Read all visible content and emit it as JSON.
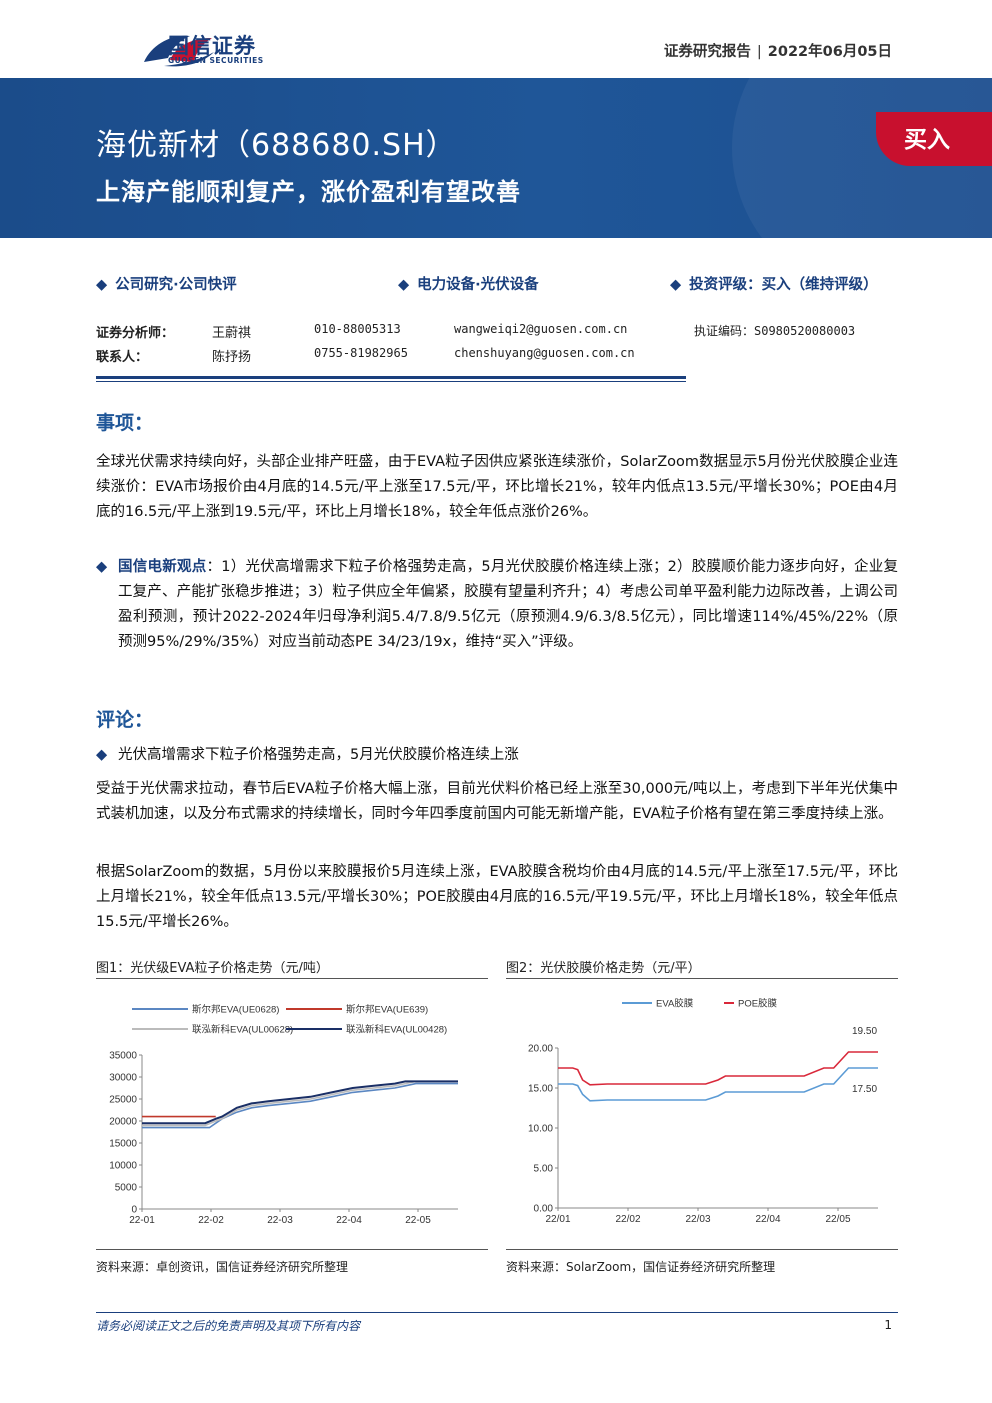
{
  "header": {
    "logo_cn": "国信证券",
    "logo_en": "GUOSEN SECURITIES",
    "report_type": "证券研究报告",
    "date": "2022年06月05日"
  },
  "banner": {
    "title": "海优新材（688680.SH）",
    "subtitle": "上海产能顺利复产，涨价盈利有望改善",
    "rating": "买入"
  },
  "categories": {
    "research": "公司研究·公司快评",
    "industry": "电力设备·光伏设备",
    "rating": "投资评级：买入（维持评级）"
  },
  "analysts": [
    {
      "role": "证券分析师：",
      "name": "王蔚祺",
      "phone": "010-88005313",
      "email": "wangweiqi2@guosen.com.cn",
      "cert": "执证编码：S0980520080003"
    },
    {
      "role": "联系人：",
      "name": "陈抒扬",
      "phone": "0755-81982965",
      "email": "chenshuyang@guosen.com.cn",
      "cert": ""
    }
  ],
  "events": {
    "heading": "事项：",
    "text": "全球光伏需求持续向好，头部企业排产旺盛，由于EVA粒子因供应紧张连续涨价，SolarZoom数据显示5月份光伏胶膜企业连续涨价：EVA市场报价由4月底的14.5元/平上涨至17.5元/平，环比增长21%，较年内低点13.5元/平增长30%；POE由4月底的16.5元/平上涨到19.5元/平，环比上月增长18%，较全年低点涨价26%。"
  },
  "viewpoint": {
    "label": "国信电新观点",
    "text": "：1）光伏高增需求下粒子价格强势走高，5月光伏胶膜价格连续上涨；2）胶膜顺价能力逐步向好，企业复工复产、产能扩张稳步推进；3）粒子供应全年偏紧，胶膜有望量利齐升；4）考虑公司单平盈利能力边际改善，上调公司盈利预测，预计2022-2024年归母净利润5.4/7.8/9.5亿元（原预测4.9/6.3/8.5亿元），同比增速114%/45%/22%（原预测95%/29%/35%）对应当前动态PE 34/23/19x，维持“买入”评级。"
  },
  "comments": {
    "heading": "评论：",
    "bullet": "光伏高增需求下粒子价格强势走高，5月光伏胶膜价格连续上涨",
    "p1": "受益于光伏需求拉动，春节后EVA粒子价格大幅上涨，目前光伏料价格已经上涨至30,000元/吨以上，考虑到下半年光伏集中式装机加速，以及分布式需求的持续增长，同时今年四季度前国内可能无新增产能，EVA粒子价格有望在第三季度持续上涨。",
    "p2": "根据SolarZoom的数据，5月份以来胶膜报价5月连续上涨，EVA胶膜含税均价由4月底的14.5元/平上涨至17.5元/平，环比上月增长21%，较全年低点13.5元/平增长30%；POE胶膜由4月底的16.5元/平19.5元/平，环比上月增长18%，较全年低点15.5元/平增长26%。"
  },
  "figure1": {
    "caption": "图1：光伏级EVA粒子价格走势（元/吨）",
    "source": "资料来源：卓创资讯，国信证券经济研究所整理"
  },
  "figure2": {
    "caption": "图2：光伏胶膜价格走势（元/平）",
    "source": "资料来源：SolarZoom，国信证券经济研究所整理"
  },
  "chart_data": [
    {
      "type": "line",
      "title": "图1：光伏级EVA粒子价格走势（元/吨）",
      "x_ticks": [
        "22-01",
        "22-02",
        "22-03",
        "22-04",
        "22-05"
      ],
      "y_ticks": [
        "0",
        "5000",
        "10000",
        "15000",
        "20000",
        "25000",
        "30000",
        "35000"
      ],
      "ylim": [
        0,
        35000
      ],
      "legend": "top",
      "series": [
        {
          "name": "斯尔邦EVA(UE0628)",
          "color": "#5b87c2",
          "x": [
            0,
            15,
            20,
            25,
            32,
            35,
            38,
            45,
            52,
            60,
            70,
            80,
            90,
            100,
            110,
            120,
            125,
            130,
            140,
            145,
            150
          ],
          "values": [
            18500,
            18500,
            18500,
            18500,
            18500,
            19500,
            20500,
            22000,
            23000,
            23500,
            24000,
            24500,
            25500,
            26500,
            27000,
            27500,
            28000,
            28500,
            28500,
            28500,
            28500
          ]
        },
        {
          "name": "斯尔邦EVA(UE639)",
          "color": "#c0392b",
          "x": [
            0,
            35
          ],
          "values": [
            21000,
            21000
          ]
        },
        {
          "name": "联泓新科EVA(UL00628)",
          "color": "#bbbbbb",
          "x": [
            0,
            15,
            30,
            35,
            38,
            45,
            52,
            60,
            70,
            80,
            90,
            100,
            110,
            120,
            125,
            130,
            150
          ],
          "values": [
            19000,
            19000,
            19000,
            20000,
            20500,
            22500,
            23500,
            24000,
            24500,
            25000,
            26000,
            27000,
            27500,
            28000,
            28500,
            29000,
            29000
          ]
        },
        {
          "name": "联泓新科EVA(UL00428)",
          "color": "#1a2f66",
          "x": [
            0,
            15,
            30,
            35,
            38,
            45,
            52,
            60,
            70,
            80,
            90,
            100,
            110,
            120,
            125,
            130,
            150
          ],
          "values": [
            19500,
            19500,
            19500,
            20500,
            21000,
            23000,
            24000,
            24500,
            25000,
            25500,
            26500,
            27500,
            28000,
            28500,
            29000,
            29000,
            29000
          ]
        }
      ]
    },
    {
      "type": "line",
      "title": "图2：光伏胶膜价格走势（元/平）",
      "x_ticks": [
        "22/01",
        "22/02",
        "22/03",
        "22/04",
        "22/05"
      ],
      "y_ticks": [
        "0.00",
        "5.00",
        "10.00",
        "15.00",
        "20.00"
      ],
      "ylim": [
        0,
        20
      ],
      "legend": "top",
      "annotations": [
        "19.50",
        "17.50"
      ],
      "series": [
        {
          "name": "EVA胶膜",
          "color": "#5b9bd5",
          "x": [
            0,
            6,
            8,
            10,
            13,
            20,
            40,
            60,
            65,
            68,
            75,
            85,
            100,
            108,
            112,
            115,
            118,
            122,
            128,
            130
          ],
          "values": [
            15.5,
            15.5,
            15.3,
            14.2,
            13.4,
            13.5,
            13.5,
            13.5,
            14.0,
            14.5,
            14.5,
            14.5,
            14.5,
            15.5,
            15.5,
            16.5,
            17.5,
            17.5,
            17.5,
            17.5
          ]
        },
        {
          "name": "POE胶膜",
          "color": "#d9283a",
          "x": [
            0,
            6,
            8,
            10,
            13,
            20,
            40,
            60,
            65,
            68,
            75,
            85,
            100,
            108,
            112,
            115,
            118,
            122,
            128,
            130
          ],
          "values": [
            17.5,
            17.5,
            17.3,
            16.0,
            15.4,
            15.5,
            15.5,
            15.5,
            16.0,
            16.5,
            16.5,
            16.5,
            16.5,
            17.5,
            17.5,
            18.5,
            19.5,
            19.5,
            19.5,
            19.5
          ]
        }
      ]
    }
  ],
  "footer": {
    "disclaimer": "请务必阅读正文之后的免责声明及其项下所有内容",
    "page": "1"
  }
}
